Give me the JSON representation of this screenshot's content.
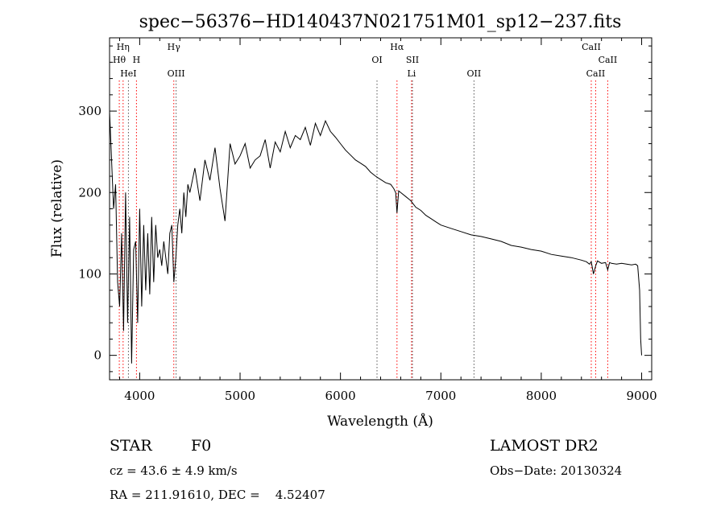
{
  "chart_data": {
    "type": "line",
    "title": "spec−56376−HD140437N021751M01_sp12−237.fits",
    "xlabel": "Wavelength (Å)",
    "ylabel": "Flux (relative)",
    "xlim": [
      3700,
      9100
    ],
    "ylim": [
      -30,
      390
    ],
    "x_ticks": [
      4000,
      5000,
      6000,
      7000,
      8000,
      9000
    ],
    "y_ticks": [
      0,
      100,
      200,
      300
    ],
    "grid": false,
    "line_color": "#000000",
    "marker_color": "#ff0000",
    "series": [
      {
        "x": [
          3700,
          3720,
          3740,
          3760,
          3780,
          3800,
          3820,
          3840,
          3860,
          3880,
          3900,
          3920,
          3940,
          3960,
          3980,
          4000,
          4020,
          4040,
          4060,
          4080,
          4100,
          4120,
          4140,
          4160,
          4180,
          4200,
          4220,
          4240,
          4260,
          4280,
          4300,
          4320,
          4340,
          4360,
          4380,
          4400,
          4420,
          4440,
          4460,
          4480,
          4500,
          4550,
          4600,
          4650,
          4700,
          4750,
          4800,
          4850,
          4900,
          4950,
          5000,
          5050,
          5100,
          5150,
          5200,
          5250,
          5300,
          5350,
          5400,
          5450,
          5500,
          5550,
          5600,
          5650,
          5700,
          5750,
          5800,
          5850,
          5900,
          5950,
          6000,
          6050,
          6100,
          6150,
          6200,
          6250,
          6300,
          6350,
          6400,
          6450,
          6500,
          6530,
          6550,
          6563,
          6580,
          6600,
          6650,
          6700,
          6750,
          6800,
          6850,
          6900,
          6950,
          7000,
          7100,
          7200,
          7300,
          7400,
          7500,
          7600,
          7700,
          7800,
          7900,
          8000,
          8100,
          8200,
          8300,
          8400,
          8450,
          8480,
          8498,
          8520,
          8542,
          8560,
          8600,
          8640,
          8662,
          8680,
          8700,
          8750,
          8800,
          8850,
          8900,
          8940,
          8960,
          8980,
          8990,
          9000
        ],
        "y": [
          300,
          240,
          180,
          210,
          90,
          60,
          150,
          30,
          200,
          40,
          170,
          -10,
          130,
          140,
          40,
          180,
          60,
          160,
          80,
          150,
          75,
          170,
          90,
          160,
          120,
          130,
          110,
          140,
          120,
          100,
          150,
          160,
          90,
          120,
          160,
          180,
          150,
          200,
          170,
          210,
          200,
          230,
          190,
          240,
          215,
          255,
          205,
          165,
          260,
          235,
          245,
          260,
          230,
          240,
          245,
          265,
          230,
          262,
          250,
          275,
          255,
          270,
          265,
          280,
          258,
          285,
          270,
          288,
          275,
          268,
          260,
          252,
          246,
          240,
          236,
          232,
          225,
          220,
          216,
          212,
          210,
          205,
          200,
          175,
          202,
          200,
          195,
          190,
          182,
          178,
          172,
          168,
          164,
          160,
          156,
          152,
          148,
          146,
          143,
          140,
          135,
          133,
          130,
          128,
          124,
          122,
          120,
          117,
          115,
          112,
          115,
          100,
          110,
          116,
          113,
          114,
          105,
          114,
          113,
          112,
          113,
          112,
          111,
          112,
          110,
          80,
          20,
          0
        ]
      }
    ],
    "spectral_lines": [
      {
        "label": "Hη",
        "x": 3835
      },
      {
        "label": "Hθ",
        "x": 3797
      },
      {
        "label": "H",
        "x": 3968
      },
      {
        "label": "HeI",
        "x": 3888
      },
      {
        "label": "Hγ",
        "x": 4340
      },
      {
        "label": "OIII",
        "x": 4363
      },
      {
        "label": "OI",
        "x": 6364
      },
      {
        "label": "Hα",
        "x": 6563
      },
      {
        "label": "SII",
        "x": 6717
      },
      {
        "label": "Li",
        "x": 6708
      },
      {
        "label": "OII",
        "x": 7330
      },
      {
        "label": "CaII",
        "x": 8498
      },
      {
        "label": "CaII",
        "x": 8542
      },
      {
        "label": "CaII",
        "x": 8662
      }
    ]
  },
  "info": {
    "object_class": "STAR",
    "subclass": "F0",
    "survey": "LAMOST DR2",
    "redshift": "cz = 43.6 ± 4.9 km/s",
    "obs_date": "Obs−Date: 20130324",
    "coords": "RA = 211.91610, DEC =    4.52407"
  }
}
